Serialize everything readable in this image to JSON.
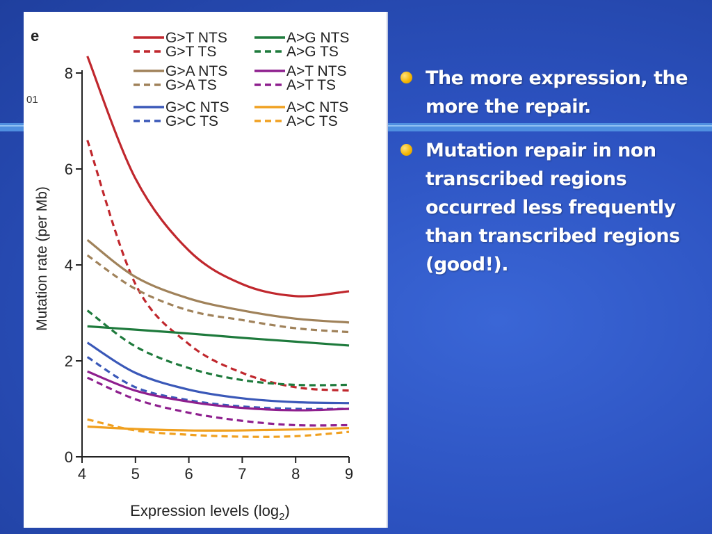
{
  "slide": {
    "bullets": [
      "The more expression, the more the repair.",
      "Mutation repair in non transcribed regions occurred less frequently than transcribed regions (good!)."
    ]
  },
  "colors": {
    "background": "#2c52c0",
    "bullet_dot": "#f2b300",
    "G>T": "#c0272d",
    "G>A": "#a0825a",
    "G>C": "#3a58b8",
    "A>G": "#1e7a3c",
    "A>T": "#8e1f8e",
    "A>C": "#f0a020"
  },
  "chart_data": {
    "type": "line",
    "panel_label": "e",
    "corner_text": "01",
    "xlabel": "Expression levels (log",
    "xlabel_subscript": "2",
    "xlabel_suffix": ")",
    "ylabel": "Mutation rate (per Mb)",
    "xlim": [
      4,
      9
    ],
    "ylim": [
      0,
      8
    ],
    "xticks": [
      4,
      5,
      6,
      7,
      8,
      9
    ],
    "yticks": [
      0,
      2,
      4,
      6,
      8
    ],
    "grid": false,
    "legend": "top",
    "x": [
      4.1,
      5,
      6,
      7,
      8,
      9
    ],
    "series": [
      {
        "name": "G>T NTS",
        "color": "#c0272d",
        "dash": false,
        "values": [
          8.35,
          5.8,
          4.3,
          3.6,
          3.35,
          3.45
        ]
      },
      {
        "name": "G>T TS",
        "color": "#c0272d",
        "dash": true,
        "values": [
          6.6,
          3.6,
          2.35,
          1.75,
          1.45,
          1.38
        ]
      },
      {
        "name": "G>A NTS",
        "color": "#a0825a",
        "dash": false,
        "values": [
          4.52,
          3.75,
          3.3,
          3.05,
          2.88,
          2.8
        ]
      },
      {
        "name": "G>A TS",
        "color": "#a0825a",
        "dash": true,
        "values": [
          4.2,
          3.5,
          3.05,
          2.85,
          2.68,
          2.6
        ]
      },
      {
        "name": "G>C NTS",
        "color": "#3a58b8",
        "dash": false,
        "values": [
          2.38,
          1.75,
          1.4,
          1.22,
          1.14,
          1.12
        ]
      },
      {
        "name": "G>C TS",
        "color": "#3a58b8",
        "dash": true,
        "values": [
          2.08,
          1.45,
          1.18,
          1.05,
          1.0,
          1.0
        ]
      },
      {
        "name": "A>G NTS",
        "color": "#1e7a3c",
        "dash": false,
        "values": [
          2.72,
          2.65,
          2.57,
          2.48,
          2.4,
          2.32
        ]
      },
      {
        "name": "A>G TS",
        "color": "#1e7a3c",
        "dash": true,
        "values": [
          3.05,
          2.3,
          1.85,
          1.6,
          1.5,
          1.5
        ]
      },
      {
        "name": "A>T NTS",
        "color": "#8e1f8e",
        "dash": false,
        "values": [
          1.78,
          1.38,
          1.15,
          1.02,
          0.97,
          1.0
        ]
      },
      {
        "name": "A>T TS",
        "color": "#8e1f8e",
        "dash": true,
        "values": [
          1.65,
          1.2,
          0.92,
          0.75,
          0.66,
          0.66
        ]
      },
      {
        "name": "A>C NTS",
        "color": "#f0a020",
        "dash": false,
        "values": [
          0.63,
          0.58,
          0.55,
          0.55,
          0.57,
          0.6
        ]
      },
      {
        "name": "A>C TS",
        "color": "#f0a020",
        "dash": true,
        "values": [
          0.78,
          0.55,
          0.46,
          0.42,
          0.43,
          0.52
        ]
      }
    ]
  }
}
